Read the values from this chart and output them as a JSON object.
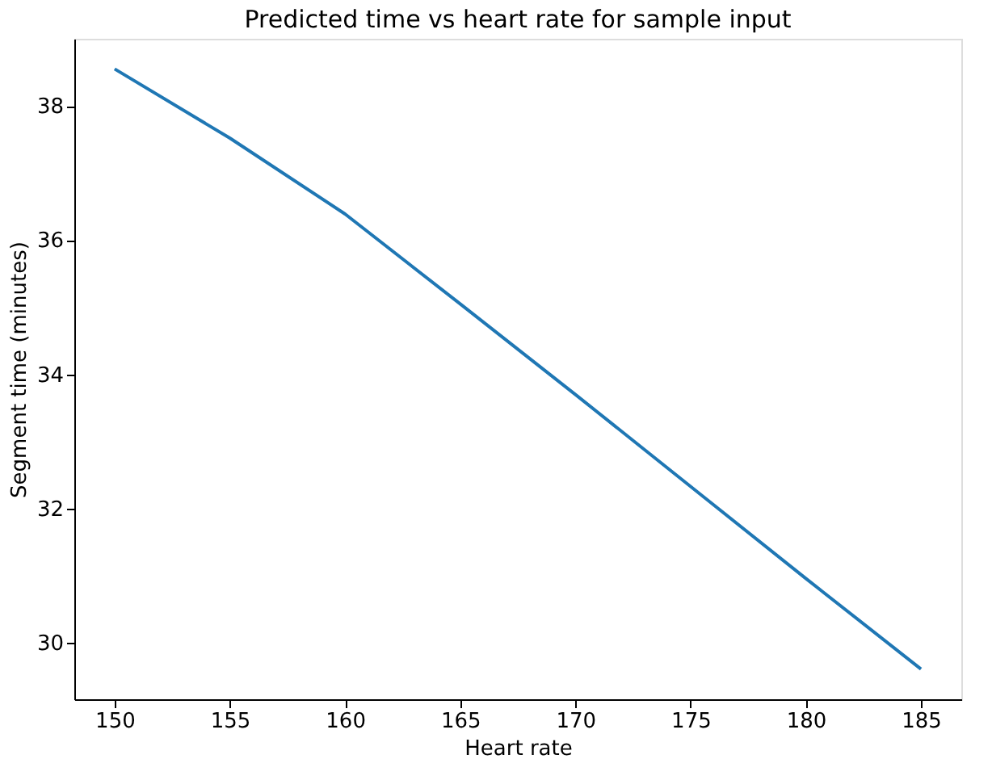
{
  "chart_data": {
    "type": "line",
    "title": "Predicted time vs heart rate for sample input",
    "xlabel": "Heart rate",
    "ylabel": "Segment time (minutes)",
    "x": [
      150,
      155,
      160,
      165,
      170,
      175,
      180,
      185
    ],
    "series": [
      {
        "color": "#1f77b4",
        "values": [
          38.55,
          37.52,
          36.39,
          35.05,
          33.7,
          32.33,
          30.96,
          29.61
        ]
      }
    ],
    "xlim": [
      148.25,
      186.75
    ],
    "ylim": [
      29.16,
      39.0
    ],
    "xticks": [
      150,
      155,
      160,
      165,
      170,
      175,
      180,
      185
    ],
    "yticks": [
      30,
      32,
      34,
      36,
      38
    ],
    "grid": false,
    "marker": "none",
    "line_style": "solid"
  }
}
